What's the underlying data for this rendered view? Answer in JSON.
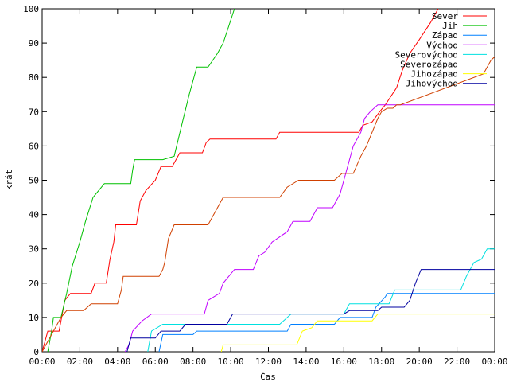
{
  "chart_data": {
    "type": "line",
    "xlabel": "Čas",
    "ylabel": "krát",
    "xlim": [
      0,
      24
    ],
    "ylim": [
      0,
      100
    ],
    "x_ticks": [
      {
        "value": 0,
        "label": "00:00"
      },
      {
        "value": 2,
        "label": "02:00"
      },
      {
        "value": 4,
        "label": "04:00"
      },
      {
        "value": 6,
        "label": "06:00"
      },
      {
        "value": 8,
        "label": "08:00"
      },
      {
        "value": 10,
        "label": "10:00"
      },
      {
        "value": 12,
        "label": "12:00"
      },
      {
        "value": 14,
        "label": "14:00"
      },
      {
        "value": 16,
        "label": "16:00"
      },
      {
        "value": 18,
        "label": "18:00"
      },
      {
        "value": 20,
        "label": "20:00"
      },
      {
        "value": 22,
        "label": "22:00"
      },
      {
        "value": 24,
        "label": "00:00"
      }
    ],
    "y_ticks": [
      0,
      10,
      20,
      30,
      40,
      50,
      60,
      70,
      80,
      90,
      100
    ],
    "grid": false,
    "legend_position": "top-right",
    "series": [
      {
        "name": "Sever",
        "color": "#ff0000",
        "points": [
          [
            0,
            0
          ],
          [
            0.3,
            6
          ],
          [
            0.9,
            6
          ],
          [
            1.1,
            12
          ],
          [
            1.2,
            15
          ],
          [
            1.5,
            17
          ],
          [
            2.6,
            17
          ],
          [
            2.8,
            20
          ],
          [
            3.4,
            20
          ],
          [
            3.6,
            27
          ],
          [
            3.8,
            32
          ],
          [
            3.9,
            37
          ],
          [
            5.0,
            37
          ],
          [
            5.2,
            44
          ],
          [
            5.5,
            47
          ],
          [
            6.0,
            50
          ],
          [
            6.3,
            54
          ],
          [
            6.9,
            54
          ],
          [
            7.3,
            58
          ],
          [
            8.5,
            58
          ],
          [
            8.7,
            61
          ],
          [
            8.9,
            62
          ],
          [
            12.4,
            62
          ],
          [
            12.6,
            64
          ],
          [
            16.8,
            64
          ],
          [
            17.0,
            66
          ],
          [
            17.5,
            67
          ],
          [
            17.9,
            70
          ],
          [
            18.2,
            72
          ],
          [
            18.8,
            77
          ],
          [
            19.1,
            82
          ],
          [
            19.5,
            87
          ],
          [
            20.0,
            91
          ],
          [
            20.6,
            96
          ],
          [
            21.0,
            100
          ]
        ]
      },
      {
        "name": "Jih",
        "color": "#00c000",
        "points": [
          [
            0.3,
            0
          ],
          [
            0.5,
            6
          ],
          [
            0.6,
            10
          ],
          [
            1.0,
            10
          ],
          [
            1.3,
            17
          ],
          [
            1.6,
            25
          ],
          [
            2.0,
            32
          ],
          [
            2.3,
            38
          ],
          [
            2.7,
            45
          ],
          [
            3.3,
            49
          ],
          [
            4.7,
            49
          ],
          [
            4.8,
            53
          ],
          [
            4.9,
            56
          ],
          [
            6.0,
            56
          ],
          [
            6.4,
            56
          ],
          [
            7.0,
            57
          ],
          [
            7.4,
            66
          ],
          [
            7.8,
            75
          ],
          [
            8.2,
            83
          ],
          [
            8.8,
            83
          ],
          [
            9.3,
            87
          ],
          [
            9.6,
            90
          ],
          [
            9.9,
            95
          ],
          [
            10.2,
            100
          ]
        ]
      },
      {
        "name": "Západ",
        "color": "#0080ff",
        "points": [
          [
            6.2,
            0
          ],
          [
            6.4,
            5
          ],
          [
            8.0,
            5
          ],
          [
            8.2,
            6
          ],
          [
            13.0,
            6
          ],
          [
            13.2,
            8
          ],
          [
            15.5,
            8
          ],
          [
            15.8,
            10
          ],
          [
            17.5,
            10
          ],
          [
            17.7,
            13
          ],
          [
            18.2,
            16
          ],
          [
            18.3,
            17
          ],
          [
            24,
            17
          ]
        ]
      },
      {
        "name": "Východ",
        "color": "#c000ff",
        "points": [
          [
            4.4,
            0
          ],
          [
            4.6,
            2
          ],
          [
            4.8,
            6
          ],
          [
            5.3,
            9
          ],
          [
            5.8,
            11
          ],
          [
            8.6,
            11
          ],
          [
            8.8,
            15
          ],
          [
            9.4,
            17
          ],
          [
            9.6,
            20
          ],
          [
            10.2,
            24
          ],
          [
            11.2,
            24
          ],
          [
            11.5,
            28
          ],
          [
            11.8,
            29
          ],
          [
            12.2,
            32
          ],
          [
            13.0,
            35
          ],
          [
            13.3,
            38
          ],
          [
            14.2,
            38
          ],
          [
            14.6,
            42
          ],
          [
            15.4,
            42
          ],
          [
            15.8,
            46
          ],
          [
            16.2,
            54
          ],
          [
            16.5,
            60
          ],
          [
            16.9,
            64
          ],
          [
            17.1,
            68
          ],
          [
            17.4,
            70
          ],
          [
            17.8,
            72
          ],
          [
            24,
            72
          ]
        ]
      },
      {
        "name": "Severovýchod",
        "color": "#00e0e0",
        "points": [
          [
            5.6,
            0
          ],
          [
            5.8,
            6
          ],
          [
            6.4,
            8
          ],
          [
            12.6,
            8
          ],
          [
            13.2,
            11
          ],
          [
            16.0,
            11
          ],
          [
            16.3,
            14
          ],
          [
            18.4,
            14
          ],
          [
            18.7,
            18
          ],
          [
            22.2,
            18
          ],
          [
            22.5,
            22
          ],
          [
            22.9,
            26
          ],
          [
            23.3,
            27
          ],
          [
            23.6,
            30
          ],
          [
            24,
            30
          ]
        ]
      },
      {
        "name": "Severozápad",
        "color": "#d04000",
        "points": [
          [
            0,
            0
          ],
          [
            0.2,
            2
          ],
          [
            0.6,
            6
          ],
          [
            1.0,
            10
          ],
          [
            1.3,
            12
          ],
          [
            2.2,
            12
          ],
          [
            2.6,
            14
          ],
          [
            4.0,
            14
          ],
          [
            4.2,
            18
          ],
          [
            4.3,
            22
          ],
          [
            6.2,
            22
          ],
          [
            6.4,
            24
          ],
          [
            6.5,
            26
          ],
          [
            6.7,
            33
          ],
          [
            7.0,
            37
          ],
          [
            8.8,
            37
          ],
          [
            9.2,
            41
          ],
          [
            9.6,
            45
          ],
          [
            12.6,
            45
          ],
          [
            13.0,
            48
          ],
          [
            13.6,
            50
          ],
          [
            15.5,
            50
          ],
          [
            15.9,
            52
          ],
          [
            16.5,
            52
          ],
          [
            16.9,
            57
          ],
          [
            17.2,
            60
          ],
          [
            17.5,
            64
          ],
          [
            17.8,
            68
          ],
          [
            18.0,
            70
          ],
          [
            18.3,
            71
          ],
          [
            18.6,
            71
          ],
          [
            18.8,
            72
          ],
          [
            19.0,
            72
          ],
          [
            23.4,
            81
          ],
          [
            23.8,
            85
          ],
          [
            24,
            86
          ]
        ]
      },
      {
        "name": "Jihozápad",
        "color": "#ffff00",
        "points": [
          [
            9.5,
            0
          ],
          [
            9.6,
            2
          ],
          [
            13.5,
            2
          ],
          [
            13.8,
            6
          ],
          [
            14.3,
            7
          ],
          [
            14.6,
            9
          ],
          [
            17.5,
            9
          ],
          [
            17.8,
            11
          ],
          [
            24,
            11
          ]
        ]
      },
      {
        "name": "Jihovýchod",
        "color": "#0000a0",
        "points": [
          [
            4.5,
            0
          ],
          [
            4.7,
            4
          ],
          [
            6.0,
            4
          ],
          [
            6.3,
            6
          ],
          [
            7.3,
            6
          ],
          [
            7.6,
            8
          ],
          [
            9.8,
            8
          ],
          [
            10.1,
            11
          ],
          [
            16.0,
            11
          ],
          [
            16.3,
            12
          ],
          [
            17.8,
            12
          ],
          [
            18.0,
            13
          ],
          [
            19.2,
            13
          ],
          [
            19.5,
            15
          ],
          [
            19.8,
            20
          ],
          [
            20.1,
            24
          ],
          [
            24,
            24
          ]
        ]
      }
    ]
  }
}
